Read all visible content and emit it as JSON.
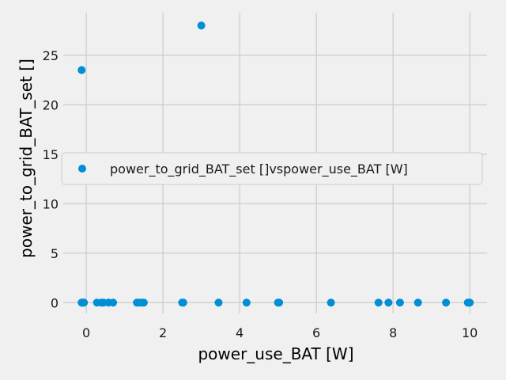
{
  "chart_data": {
    "type": "scatter",
    "xlabel": "power_use_BAT [W]",
    "ylabel": "power_to_grid_BAT_set []",
    "xlim": [
      -0.6,
      10.45
    ],
    "ylim": [
      -1.1,
      29.3
    ],
    "x_ticks": [
      0,
      2,
      4,
      6,
      8,
      10
    ],
    "y_ticks": [
      0,
      5,
      10,
      15,
      20,
      25
    ],
    "grid": true,
    "legend_position": "center-right",
    "series": [
      {
        "name": "power_to_grid_BAT_set []vspower_use_BAT [W]",
        "color": "#008fd5",
        "points": [
          [
            -0.12,
            23.5
          ],
          [
            3.0,
            28.0
          ],
          [
            -0.12,
            0
          ],
          [
            -0.1,
            0
          ],
          [
            -0.08,
            0
          ],
          [
            -0.06,
            0
          ],
          [
            0.28,
            0
          ],
          [
            0.4,
            0
          ],
          [
            0.45,
            0
          ],
          [
            0.58,
            0
          ],
          [
            0.7,
            0
          ],
          [
            1.32,
            0
          ],
          [
            1.37,
            0
          ],
          [
            1.45,
            0
          ],
          [
            1.5,
            0
          ],
          [
            2.5,
            0
          ],
          [
            2.53,
            0
          ],
          [
            3.45,
            0
          ],
          [
            4.18,
            0
          ],
          [
            5.0,
            0
          ],
          [
            5.03,
            0
          ],
          [
            6.38,
            0
          ],
          [
            7.62,
            0
          ],
          [
            7.88,
            0
          ],
          [
            8.18,
            0
          ],
          [
            8.65,
            0
          ],
          [
            9.38,
            0
          ],
          [
            9.95,
            0
          ],
          [
            9.97,
            0
          ],
          [
            10.0,
            0
          ]
        ]
      }
    ]
  }
}
